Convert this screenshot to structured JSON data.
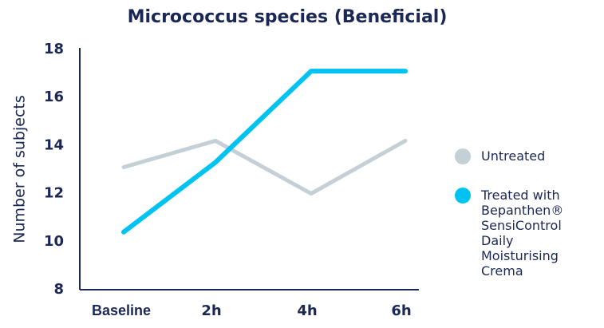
{
  "chart_data": {
    "type": "line",
    "title": "Micrococcus species (Beneficial)",
    "y_label": "Number of subjects",
    "categories": [
      "Baseline",
      "2h",
      "4h",
      "6h"
    ],
    "series": [
      {
        "name": "Untreated",
        "color": "#c5d0d6",
        "values": [
          13.1,
          14.2,
          12.0,
          14.2
        ]
      },
      {
        "name": "Treated with Bepanthen® SensiControl Daily Moisturising Crema",
        "color": "#00c3f2",
        "values": [
          10.4,
          13.3,
          17.1,
          17.1
        ]
      }
    ],
    "ylim": [
      8,
      18
    ],
    "yticks": [
      8,
      10,
      12,
      14,
      16,
      18
    ],
    "grid": false
  }
}
